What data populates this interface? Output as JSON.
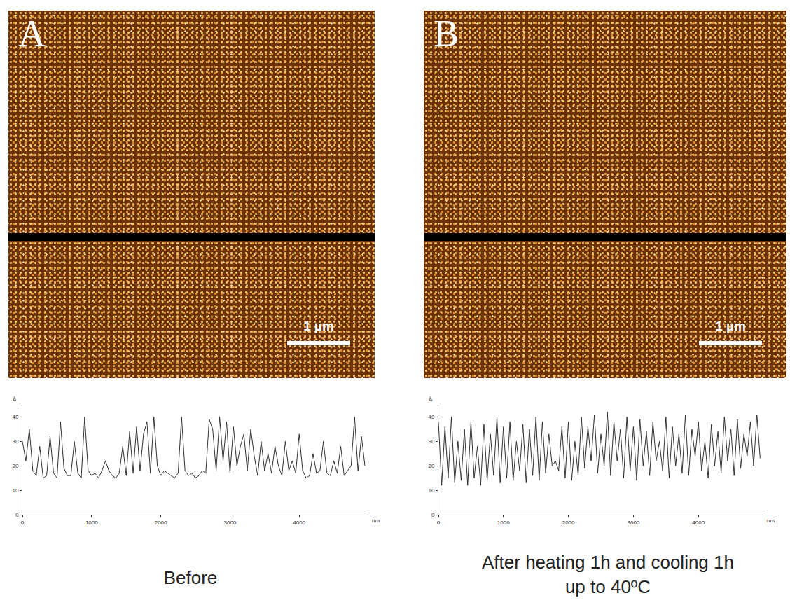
{
  "panels": [
    {
      "letter": "A",
      "scale_bar": "1 µm",
      "caption": "Before"
    },
    {
      "letter": "B",
      "scale_bar": "1 µm",
      "caption": "After heating 1h and cooling 1h up to 40ºC"
    }
  ],
  "chart_data": [
    {
      "type": "line",
      "xlabel": "nm",
      "ylabel": "Å",
      "color": "#333333",
      "grid": false,
      "xlim": [
        0,
        5000
      ],
      "xticks": [
        0,
        1000,
        2000,
        3000,
        4000
      ],
      "ylim": [
        0,
        45
      ],
      "yticks": [
        0,
        10,
        20,
        30,
        40
      ],
      "x": [
        0,
        50,
        100,
        150,
        200,
        250,
        300,
        350,
        400,
        450,
        500,
        550,
        600,
        650,
        700,
        750,
        800,
        850,
        900,
        950,
        1000,
        1050,
        1100,
        1150,
        1200,
        1250,
        1300,
        1350,
        1400,
        1450,
        1500,
        1550,
        1600,
        1650,
        1700,
        1750,
        1800,
        1850,
        1900,
        1950,
        2000,
        2050,
        2100,
        2150,
        2200,
        2250,
        2300,
        2350,
        2400,
        2450,
        2500,
        2550,
        2600,
        2650,
        2700,
        2750,
        2800,
        2850,
        2900,
        2950,
        3000,
        3050,
        3100,
        3150,
        3200,
        3250,
        3300,
        3350,
        3400,
        3450,
        3500,
        3550,
        3600,
        3650,
        3700,
        3750,
        3800,
        3850,
        3900,
        3950,
        4000,
        4050,
        4100,
        4150,
        4200,
        4250,
        4300,
        4350,
        4400,
        4450,
        4500,
        4550,
        4600,
        4650,
        4700,
        4750,
        4800,
        4850,
        4900,
        4950
      ],
      "values": [
        30,
        22,
        35,
        18,
        16,
        28,
        15,
        16,
        32,
        17,
        15,
        38,
        19,
        16,
        16,
        30,
        17,
        15,
        40,
        18,
        16,
        17,
        15,
        18,
        22,
        18,
        16,
        15,
        17,
        28,
        16,
        34,
        17,
        36,
        18,
        33,
        38,
        17,
        40,
        20,
        16,
        18,
        17,
        16,
        15,
        17,
        40,
        18,
        16,
        17,
        15,
        16,
        18,
        17,
        39,
        35,
        18,
        40,
        22,
        38,
        17,
        36,
        20,
        28,
        33,
        18,
        35,
        24,
        16,
        30,
        18,
        25,
        17,
        28,
        20,
        16,
        30,
        18,
        22,
        17,
        33,
        18,
        15,
        16,
        25,
        17,
        18,
        30,
        17,
        16,
        22,
        17,
        28,
        16,
        18,
        20,
        40,
        18,
        32,
        20
      ]
    },
    {
      "type": "line",
      "xlabel": "nm",
      "ylabel": "Å",
      "color": "#333333",
      "grid": false,
      "xlim": [
        0,
        5000
      ],
      "xticks": [
        0,
        1000,
        2000,
        3000,
        4000
      ],
      "ylim": [
        0,
        45
      ],
      "yticks": [
        0,
        10,
        20,
        30,
        40
      ],
      "x": [
        0,
        50,
        100,
        150,
        200,
        250,
        300,
        350,
        400,
        450,
        500,
        550,
        600,
        650,
        700,
        750,
        800,
        850,
        900,
        950,
        1000,
        1050,
        1100,
        1150,
        1200,
        1250,
        1300,
        1350,
        1400,
        1450,
        1500,
        1550,
        1600,
        1650,
        1700,
        1750,
        1800,
        1850,
        1900,
        1950,
        2000,
        2050,
        2100,
        2150,
        2200,
        2250,
        2300,
        2350,
        2400,
        2450,
        2500,
        2550,
        2600,
        2650,
        2700,
        2750,
        2800,
        2850,
        2900,
        2950,
        3000,
        3050,
        3100,
        3150,
        3200,
        3250,
        3300,
        3350,
        3400,
        3450,
        3500,
        3550,
        3600,
        3650,
        3700,
        3750,
        3800,
        3850,
        3900,
        3950,
        4000,
        4050,
        4100,
        4150,
        4200,
        4250,
        4300,
        4350,
        4400,
        4450,
        4500,
        4550,
        4600,
        4650,
        4700,
        4750,
        4800,
        4850,
        4900,
        4950
      ],
      "values": [
        38,
        12,
        36,
        15,
        40,
        13,
        30,
        14,
        35,
        12,
        38,
        15,
        28,
        12,
        37,
        14,
        33,
        16,
        40,
        13,
        36,
        15,
        38,
        14,
        30,
        18,
        37,
        13,
        35,
        16,
        40,
        14,
        38,
        17,
        33,
        20,
        22,
        18,
        36,
        15,
        38,
        14,
        30,
        16,
        40,
        19,
        36,
        22,
        41,
        17,
        33,
        20,
        42,
        16,
        38,
        22,
        35,
        15,
        40,
        18,
        36,
        14,
        39,
        20,
        34,
        16,
        38,
        22,
        30,
        18,
        40,
        15,
        36,
        20,
        33,
        17,
        41,
        16,
        35,
        24,
        38,
        18,
        30,
        15,
        37,
        20,
        34,
        17,
        40,
        22,
        35,
        16,
        39,
        19,
        33,
        24,
        38,
        20,
        41,
        23
      ]
    }
  ]
}
